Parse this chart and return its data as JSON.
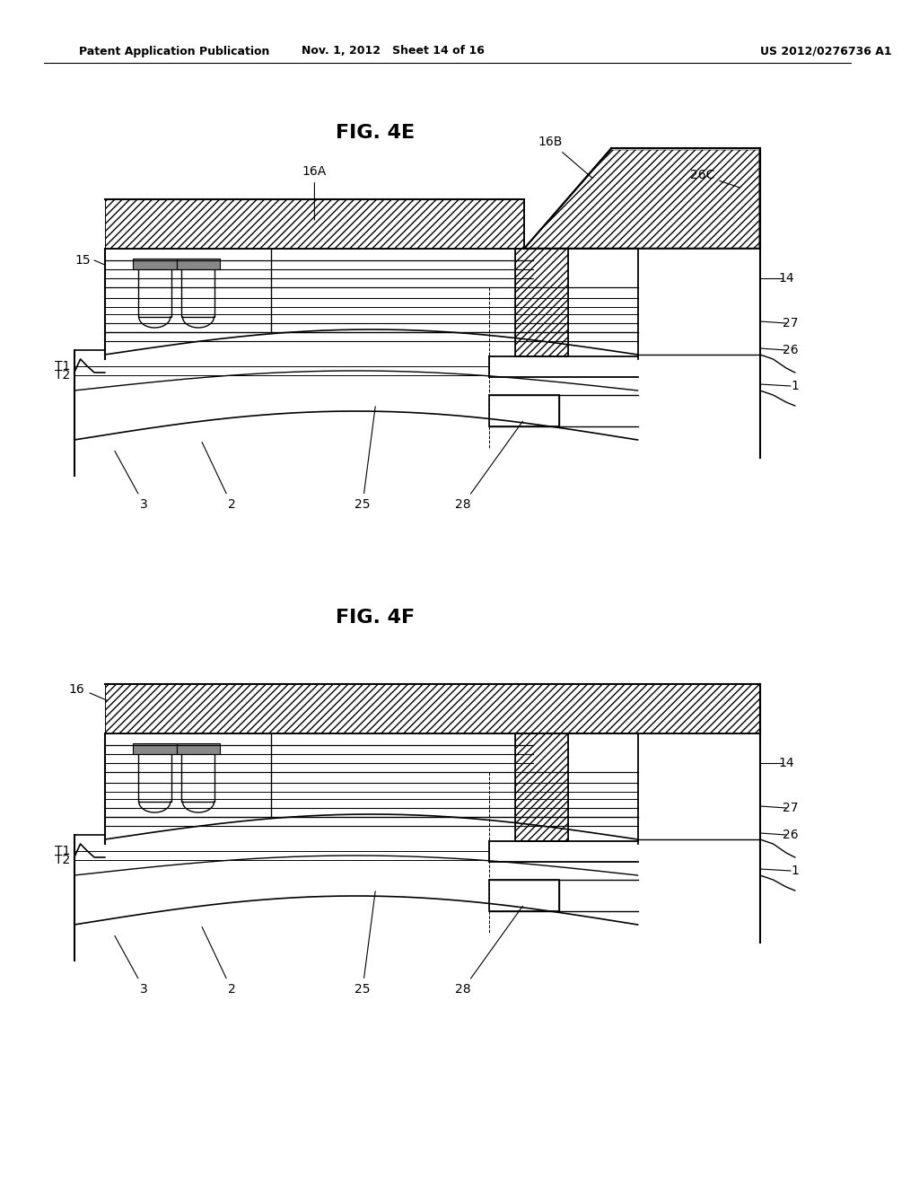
{
  "header_left": "Patent Application Publication",
  "header_mid": "Nov. 1, 2012   Sheet 14 of 16",
  "header_right": "US 2012/0276736 A1",
  "fig1_title": "FIG. 4E",
  "fig2_title": "FIG. 4F",
  "bg_color": "#ffffff",
  "line_color": "#000000"
}
